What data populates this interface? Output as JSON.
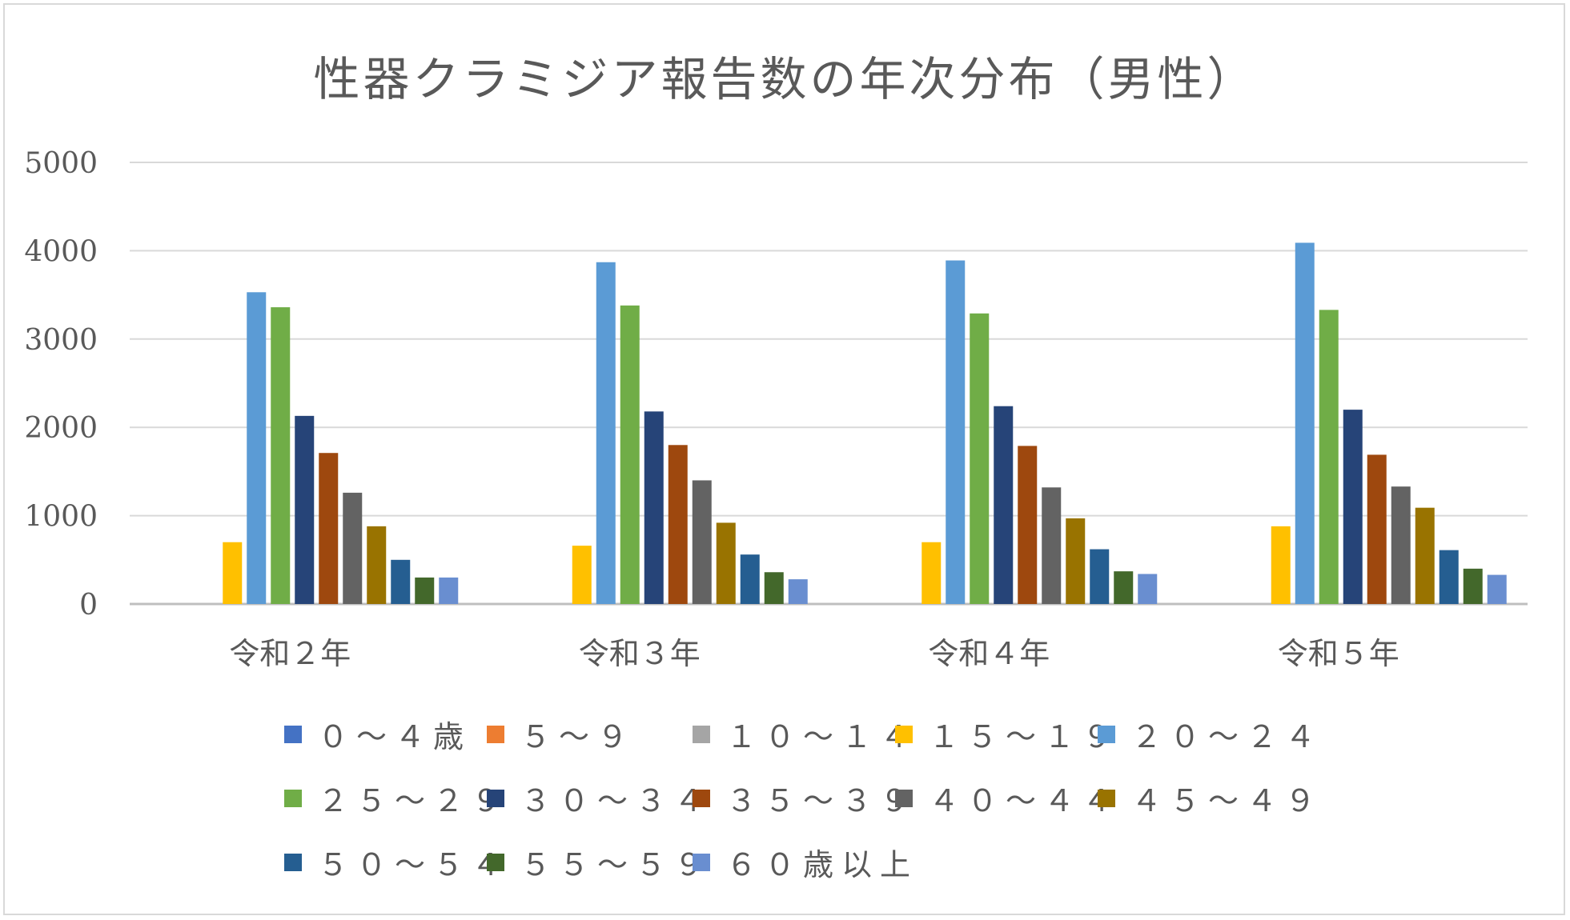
{
  "chart_data": {
    "type": "bar",
    "title": "性器クラミジア報告数の年次分布（男性）",
    "xlabel": "",
    "ylabel": "",
    "ylim": [
      0,
      5000
    ],
    "yticks": [
      "0",
      "1000",
      "2000",
      "3000",
      "4000",
      "5000"
    ],
    "grid": true,
    "legend_position": "bottom",
    "categories": [
      "令和２年",
      "令和３年",
      "令和４年",
      "令和５年"
    ],
    "series": [
      {
        "name": "０～４歳",
        "color": "#4472c4",
        "values": [
          0,
          0,
          0,
          0
        ]
      },
      {
        "name": "５～９",
        "color": "#ed7d31",
        "values": [
          0,
          0,
          0,
          0
        ]
      },
      {
        "name": "１０～１４",
        "color": "#a5a5a5",
        "values": [
          0,
          0,
          0,
          0
        ]
      },
      {
        "name": "１５～１９",
        "color": "#ffc000",
        "values": [
          700,
          660,
          700,
          880
        ]
      },
      {
        "name": "２０～２４",
        "color": "#5b9bd5",
        "values": [
          3530,
          3870,
          3890,
          4090
        ]
      },
      {
        "name": "２５～２９",
        "color": "#70ad47",
        "values": [
          3360,
          3380,
          3290,
          3330
        ]
      },
      {
        "name": "３０～３４",
        "color": "#264478",
        "values": [
          2130,
          2180,
          2240,
          2200
        ]
      },
      {
        "name": "３５～３９",
        "color": "#9e480e",
        "values": [
          1710,
          1800,
          1790,
          1690
        ]
      },
      {
        "name": "４０～４４",
        "color": "#636363",
        "values": [
          1260,
          1400,
          1320,
          1330
        ]
      },
      {
        "name": "４５～４９",
        "color": "#997300",
        "values": [
          880,
          920,
          970,
          1090
        ]
      },
      {
        "name": "５０～５４",
        "color": "#255e91",
        "values": [
          500,
          560,
          620,
          610
        ]
      },
      {
        "name": "５５～５９",
        "color": "#43682b",
        "values": [
          300,
          360,
          370,
          400
        ]
      },
      {
        "name": "６０歳以上",
        "color": "#698ed0",
        "values": [
          300,
          280,
          340,
          330
        ]
      }
    ]
  }
}
